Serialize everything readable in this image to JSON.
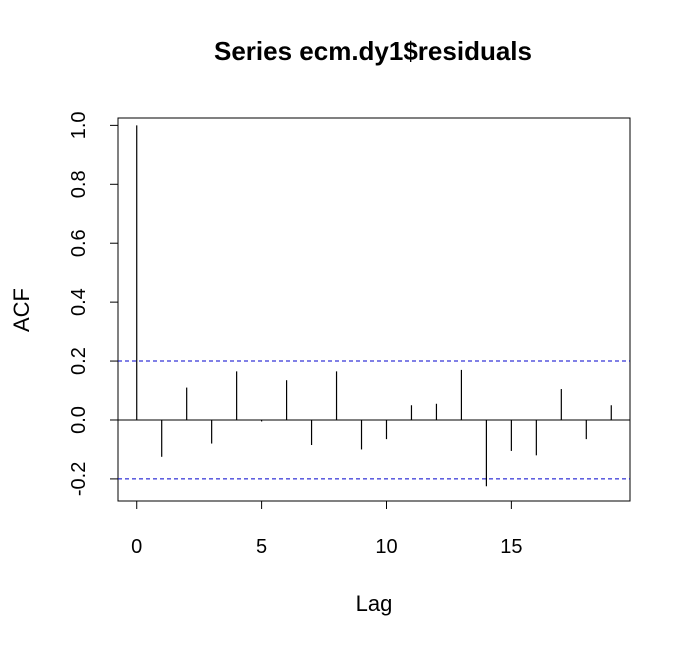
{
  "chart_data": {
    "type": "bar",
    "title": "Series  ecm.dy1$residuals",
    "xlabel": "Lag",
    "ylabel": "ACF",
    "xlim": [
      -0.75,
      19.75
    ],
    "ylim": [
      -0.275,
      1.025
    ],
    "x_ticks": [
      0,
      5,
      10,
      15
    ],
    "x_tick_labels": [
      "0",
      "5",
      "10",
      "15"
    ],
    "y_ticks": [
      -0.2,
      0.0,
      0.2,
      0.4,
      0.6,
      0.8,
      1.0
    ],
    "y_tick_labels": [
      "-0.2",
      "0.0",
      "0.2",
      "0.4",
      "0.6",
      "0.8",
      "1.0"
    ],
    "lags": [
      0,
      1,
      2,
      3,
      4,
      5,
      6,
      7,
      8,
      9,
      10,
      11,
      12,
      13,
      14,
      15,
      16,
      17,
      18,
      19
    ],
    "values": [
      1.0,
      -0.125,
      0.11,
      -0.08,
      0.165,
      -0.005,
      0.135,
      -0.085,
      0.165,
      -0.1,
      -0.065,
      0.05,
      0.055,
      0.17,
      -0.225,
      -0.105,
      -0.12,
      0.105,
      -0.065,
      0.05
    ],
    "confidence_band": 0.2,
    "confidence_color": "#0000cc",
    "grid": false
  }
}
